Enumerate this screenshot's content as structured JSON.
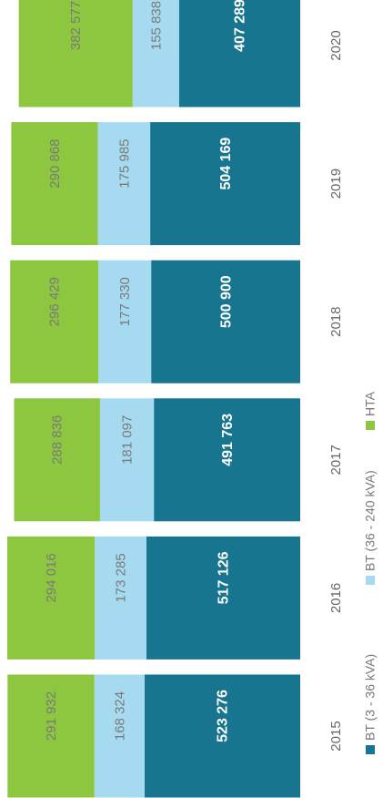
{
  "chart_data": {
    "type": "stacked_bar",
    "categories": [
      "2015",
      "2016",
      "2017",
      "2018",
      "2019",
      "2020"
    ],
    "series": [
      {
        "name": "BT (3 - 36 kVA)",
        "color": "#17758f",
        "values": [
          523276,
          517126,
          491763,
          500900,
          504169,
          407289
        ],
        "value_labels": [
          "523 276",
          "517 126",
          "491 763",
          "500 900",
          "504 169",
          "407 289"
        ]
      },
      {
        "name": "BT (36 - 240 kVA)",
        "color": "#a6daf0",
        "values": [
          168324,
          173285,
          181097,
          177330,
          175985,
          155838
        ],
        "value_labels": [
          "168 324",
          "173 285",
          "181 097",
          "177 330",
          "175 985",
          "155 838"
        ]
      },
      {
        "name": "HTA",
        "color": "#8dc63f",
        "values": [
          291932,
          294016,
          288836,
          296429,
          290868,
          382577
        ],
        "value_labels": [
          "291 932",
          "294 016",
          "288 836",
          "296 429",
          "290 868",
          "382 577"
        ]
      }
    ]
  }
}
